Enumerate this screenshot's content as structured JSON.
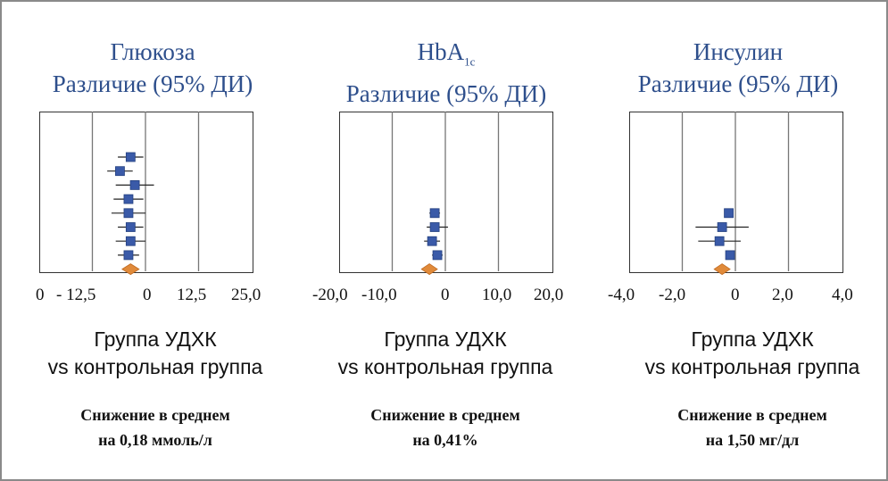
{
  "panels": [
    {
      "title_line1": "Глюкоза",
      "title_line2": "Различие (95% ДИ)",
      "group_line1": "Группа УДХК",
      "group_line2": "vs контрольная группа",
      "summary_line1": "Снижение в среднем",
      "summary_line2": "на 0,18 ммоль/л"
    },
    {
      "title_main": "HbA",
      "title_sub": "1c",
      "title_line2": "Различие (95% ДИ)",
      "group_line1": "Группа УДХК",
      "group_line2": "vs контрольная группа",
      "summary_line1": "Снижение в среднем",
      "summary_line2": "на 0,41%"
    },
    {
      "title_line1": "Инсулин",
      "title_line2": "Различие (95% ДИ)",
      "group_line1": "Группа УДХК",
      "group_line2": "vs контрольная группа",
      "summary_line1": "Снижение в среднем",
      "summary_line2": "на 1,50 мг/дл"
    }
  ],
  "chart_data": [
    {
      "type": "scatter",
      "subtype": "forest",
      "title": "Глюкоза Различие (95% ДИ)",
      "xlim": [
        -25,
        25
      ],
      "gridlines": [
        -12.5,
        0,
        12.5
      ],
      "tick_labels": [
        "0",
        "- 12,5",
        "0",
        "12,5",
        "25,0"
      ],
      "series": [
        {
          "name": "studies",
          "points": [
            {
              "row": 1,
              "est": -3.5,
              "lo": -6.5,
              "hi": -0.5
            },
            {
              "row": 2,
              "est": -6.0,
              "lo": -9.0,
              "hi": -3.0
            },
            {
              "row": 3,
              "est": -2.5,
              "lo": -7.0,
              "hi": 2.0
            },
            {
              "row": 4,
              "est": -4.0,
              "lo": -7.5,
              "hi": -0.5
            },
            {
              "row": 5,
              "est": -4.0,
              "lo": -8.0,
              "hi": 0.0
            },
            {
              "row": 6,
              "est": -3.5,
              "lo": -6.5,
              "hi": -0.5
            },
            {
              "row": 7,
              "est": -3.5,
              "lo": -7.0,
              "hi": 0.0
            },
            {
              "row": 8,
              "est": -4.0,
              "lo": -6.5,
              "hi": -1.5
            }
          ]
        },
        {
          "name": "pooled",
          "points": [
            {
              "row": 9,
              "est": -3.5,
              "lo": -5.5,
              "hi": -1.5
            }
          ]
        }
      ]
    },
    {
      "type": "scatter",
      "subtype": "forest",
      "title": "HbA1c Различие (95% ДИ)",
      "xlim": [
        -20,
        20
      ],
      "gridlines": [
        -10,
        0,
        10
      ],
      "tick_labels": [
        "-20,0",
        "-10,0",
        "0",
        "10,0",
        "20,0"
      ],
      "series": [
        {
          "name": "studies",
          "points": [
            {
              "row": 5,
              "est": -2.0,
              "lo": -3.0,
              "hi": -1.0
            },
            {
              "row": 6,
              "est": -2.0,
              "lo": -3.5,
              "hi": 0.5
            },
            {
              "row": 7,
              "est": -2.5,
              "lo": -4.0,
              "hi": -1.0
            },
            {
              "row": 8,
              "est": -1.5,
              "lo": -2.5,
              "hi": -0.5
            }
          ]
        },
        {
          "name": "pooled",
          "points": [
            {
              "row": 9,
              "est": -3.0,
              "lo": -4.5,
              "hi": -1.5
            }
          ]
        }
      ]
    },
    {
      "type": "scatter",
      "subtype": "forest",
      "title": "Инсулин Различие (95% ДИ)",
      "xlim": [
        -4,
        4
      ],
      "gridlines": [
        -2,
        0,
        2
      ],
      "tick_labels": [
        "-4,0",
        "-2,0",
        "0",
        "2,0",
        "4,0"
      ],
      "series": [
        {
          "name": "studies",
          "points": [
            {
              "row": 5,
              "est": -0.25,
              "lo": -0.4,
              "hi": -0.1
            },
            {
              "row": 6,
              "est": -0.5,
              "lo": -1.5,
              "hi": 0.5
            },
            {
              "row": 7,
              "est": -0.6,
              "lo": -1.4,
              "hi": 0.2
            },
            {
              "row": 8,
              "est": -0.2,
              "lo": -0.35,
              "hi": -0.05
            }
          ]
        },
        {
          "name": "pooled",
          "points": [
            {
              "row": 9,
              "est": -0.5,
              "lo": -0.8,
              "hi": -0.2
            }
          ]
        }
      ]
    }
  ],
  "colors": {
    "title": "#2e4f8c",
    "square": "#3a5aa8",
    "square_border": "#24407f",
    "diamond": "#e08a3a",
    "grid": "#777777"
  }
}
